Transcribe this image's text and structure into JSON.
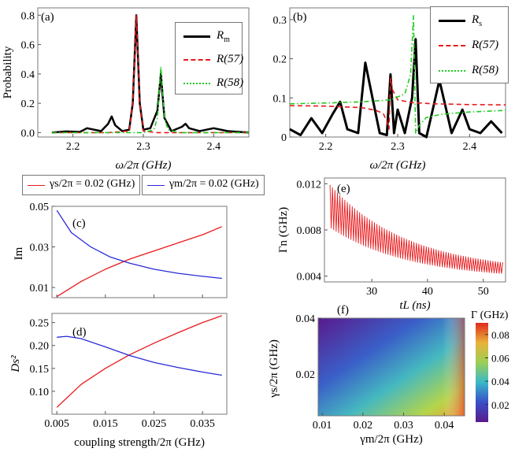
{
  "colors": {
    "black": "#000000",
    "red": "#e8191c",
    "green": "#22cc22",
    "blue": "#2a2ad6",
    "heat_low": "#5a1a8c",
    "heat_high": "#e02a1c"
  },
  "panel_a": {
    "label": "(a)",
    "ylabel": "Probability",
    "xlabel": "ω/2π (GHz)",
    "legend": [
      "R",
      "R(57)",
      "R(58)"
    ],
    "legend_sub": "m",
    "chart_data": {
      "type": "line",
      "xlim": [
        2.15,
        2.45
      ],
      "ylim": [
        -0.03,
        0.85
      ],
      "xticks": [
        "2.2",
        "2.3",
        "2.4"
      ],
      "yticks": [
        "0.0",
        "0.2",
        "0.4",
        "0.6",
        "0.8"
      ],
      "series": [
        {
          "name": "Rm",
          "style": "solid",
          "color": "black",
          "x": [
            2.17,
            2.19,
            2.21,
            2.22,
            2.24,
            2.25,
            2.255,
            2.26,
            2.27,
            2.28,
            2.285,
            2.29,
            2.295,
            2.3,
            2.31,
            2.32,
            2.325,
            2.33,
            2.34,
            2.355,
            2.36,
            2.365,
            2.38,
            2.4,
            2.42,
            2.45
          ],
          "y": [
            0.0,
            0.008,
            0.005,
            0.03,
            0.01,
            0.06,
            0.11,
            0.05,
            0.01,
            0.02,
            0.2,
            0.8,
            0.2,
            0.02,
            0.03,
            0.15,
            0.4,
            0.1,
            0.01,
            0.04,
            0.06,
            0.03,
            0.01,
            0.03,
            0.01,
            0.0
          ]
        },
        {
          "name": "Rm(57)",
          "style": "dashed",
          "color": "red",
          "x": [
            2.17,
            2.25,
            2.28,
            2.285,
            2.29,
            2.295,
            2.3,
            2.32,
            2.45
          ],
          "y": [
            0.0,
            0.0,
            0.01,
            0.2,
            0.8,
            0.2,
            0.01,
            0.0,
            0.0
          ]
        },
        {
          "name": "Rm(58)",
          "style": "dashdot",
          "color": "green",
          "x": [
            2.17,
            2.3,
            2.315,
            2.32,
            2.325,
            2.33,
            2.335,
            2.35,
            2.45
          ],
          "y": [
            0.0,
            0.0,
            0.02,
            0.1,
            0.45,
            0.1,
            0.02,
            0.0,
            0.0
          ]
        }
      ]
    }
  },
  "panel_b": {
    "label": "(b)",
    "xlabel": "ω/2π (GHz)",
    "legend": [
      "R",
      "R(57)",
      "R(58)"
    ],
    "legend_sub": "s",
    "chart_data": {
      "type": "line",
      "xlim": [
        2.15,
        2.45
      ],
      "ylim": [
        0.0,
        0.33
      ],
      "xticks": [
        "2.2",
        "2.3",
        "2.4"
      ],
      "yticks": [
        "0",
        "0.1",
        "0.2",
        "0.3"
      ],
      "series": [
        {
          "name": "Rs",
          "style": "solid",
          "color": "black",
          "x": [
            2.15,
            2.165,
            2.18,
            2.195,
            2.21,
            2.22,
            2.23,
            2.245,
            2.255,
            2.265,
            2.275,
            2.285,
            2.29,
            2.295,
            2.3,
            2.31,
            2.32,
            2.325,
            2.33,
            2.34,
            2.35,
            2.358,
            2.365,
            2.375,
            2.39,
            2.4,
            2.415,
            2.43,
            2.445
          ],
          "y": [
            0.02,
            0.005,
            0.048,
            0.01,
            0.06,
            0.09,
            0.02,
            0.01,
            0.19,
            0.1,
            0.01,
            0.005,
            0.16,
            0.01,
            0.07,
            0.01,
            0.1,
            0.25,
            0.01,
            0.0,
            0.08,
            0.145,
            0.09,
            0.01,
            0.07,
            0.02,
            0.01,
            0.04,
            0.01
          ]
        },
        {
          "name": "Rs(57)",
          "style": "dashed",
          "color": "red",
          "x": [
            2.15,
            2.2,
            2.25,
            2.27,
            2.28,
            2.285,
            2.288,
            2.29,
            2.293,
            2.3,
            2.32,
            2.35,
            2.4,
            2.45
          ],
          "y": [
            0.08,
            0.079,
            0.075,
            0.068,
            0.06,
            0.04,
            0.02,
            0.15,
            0.12,
            0.095,
            0.088,
            0.085,
            0.083,
            0.082
          ]
        },
        {
          "name": "Rs(58)",
          "style": "dashdot",
          "color": "green",
          "x": [
            2.15,
            2.2,
            2.25,
            2.29,
            2.31,
            2.318,
            2.322,
            2.325,
            2.33,
            2.34,
            2.36,
            2.4,
            2.45
          ],
          "y": [
            0.085,
            0.087,
            0.09,
            0.095,
            0.11,
            0.16,
            0.31,
            0.01,
            0.03,
            0.05,
            0.058,
            0.064,
            0.068
          ]
        }
      ]
    }
  },
  "mid_legend": {
    "red_label": "γs/2π = 0.02 (GHz)",
    "blue_label": "γm/2π = 0.02 (GHz)"
  },
  "panel_c": {
    "label": "(c)",
    "ylabel": "Im",
    "chart_data": {
      "type": "line",
      "xlim": [
        0.004,
        0.04
      ],
      "ylim": [
        0.005,
        0.05
      ],
      "yticks": [
        "0.01",
        "0.03",
        "0.05"
      ],
      "series": [
        {
          "name": "red",
          "color": "red",
          "x": [
            0.005,
            0.01,
            0.015,
            0.02,
            0.025,
            0.03,
            0.035,
            0.039
          ],
          "y": [
            0.0055,
            0.013,
            0.019,
            0.024,
            0.028,
            0.032,
            0.036,
            0.04
          ]
        },
        {
          "name": "blue",
          "color": "blue",
          "x": [
            0.005,
            0.008,
            0.012,
            0.016,
            0.02,
            0.025,
            0.03,
            0.035,
            0.039
          ],
          "y": [
            0.048,
            0.037,
            0.03,
            0.025,
            0.022,
            0.019,
            0.017,
            0.0155,
            0.0145
          ]
        }
      ]
    }
  },
  "panel_d": {
    "label": "(d)",
    "ylabel": "Ds²",
    "xlabel": "coupling strength/2π (GHz)",
    "chart_data": {
      "type": "line",
      "xlim": [
        0.004,
        0.04
      ],
      "ylim": [
        0.05,
        0.27
      ],
      "xticks": [
        "0.005",
        "0.015",
        "0.025",
        "0.035"
      ],
      "yticks": [
        "0.10",
        "0.15",
        "0.20",
        "0.25"
      ],
      "series": [
        {
          "name": "red",
          "color": "red",
          "x": [
            0.005,
            0.01,
            0.015,
            0.02,
            0.025,
            0.03,
            0.035,
            0.039
          ],
          "y": [
            0.065,
            0.115,
            0.15,
            0.18,
            0.205,
            0.228,
            0.25,
            0.265
          ]
        },
        {
          "name": "blue",
          "color": "blue",
          "x": [
            0.005,
            0.007,
            0.01,
            0.015,
            0.02,
            0.025,
            0.03,
            0.035,
            0.039
          ],
          "y": [
            0.218,
            0.22,
            0.215,
            0.197,
            0.178,
            0.163,
            0.152,
            0.142,
            0.135
          ]
        }
      ]
    }
  },
  "panel_e": {
    "label": "(e)",
    "ylabel": "Γn (GHz)",
    "xlabel": "tL (ns)",
    "chart_data": {
      "type": "line",
      "xlim": [
        21.5,
        54
      ],
      "ylim": [
        0.0035,
        0.0125
      ],
      "xticks": [
        "30",
        "40",
        "50"
      ],
      "yticks": [
        "0.004",
        "0.008",
        "0.012"
      ],
      "series": [
        {
          "name": "Γn",
          "color": "red",
          "t_start": 22.5,
          "t_end": 53.5,
          "upper_start": 0.0119,
          "upper_end": 0.0052,
          "lower_start": 0.0082,
          "lower_end": 0.0042
        }
      ]
    }
  },
  "panel_f": {
    "label": "(f)",
    "ylabel": "γs/2π (GHz)",
    "xlabel": "γm/2π (GHz)",
    "colorbar_label": "Γ (GHz)",
    "chart_data": {
      "type": "heatmap",
      "xlim": [
        0.009,
        0.045
      ],
      "ylim": [
        0.005,
        0.04
      ],
      "xticks": [
        "0.01",
        "0.02",
        "0.03",
        "0.04"
      ],
      "yticks": [
        "0.02",
        "0.04"
      ],
      "colorbar_ticks": [
        "0.02",
        "0.04",
        "0.06",
        "0.08"
      ],
      "colorbar_range": [
        0.005,
        0.09
      ]
    }
  }
}
